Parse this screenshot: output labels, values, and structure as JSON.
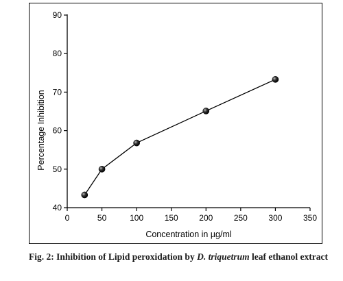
{
  "chart_data": {
    "type": "line",
    "x": [
      25,
      50,
      100,
      200,
      300
    ],
    "series": [
      {
        "values": [
          43.3,
          50.0,
          56.8,
          65.1,
          73.3
        ]
      }
    ],
    "xlabel": "Concentration in µg/ml",
    "ylabel": "Percentage Inhibition",
    "xlim": [
      0,
      350
    ],
    "ylim": [
      40,
      90
    ],
    "xticks": [
      "0",
      "50",
      "100",
      "150",
      "200",
      "250",
      "300",
      "350"
    ],
    "yticks": [
      "40",
      "50",
      "60",
      "70",
      "80",
      "90"
    ],
    "grid": false
  },
  "caption": {
    "prefix": "Fig. 2: Inhibition of Lipid peroxidation by ",
    "species": "D. triquetrum",
    "suffix": " leaf ethanol extract"
  },
  "colors": {
    "line": "#000000",
    "marker": "#1a1a1a"
  }
}
